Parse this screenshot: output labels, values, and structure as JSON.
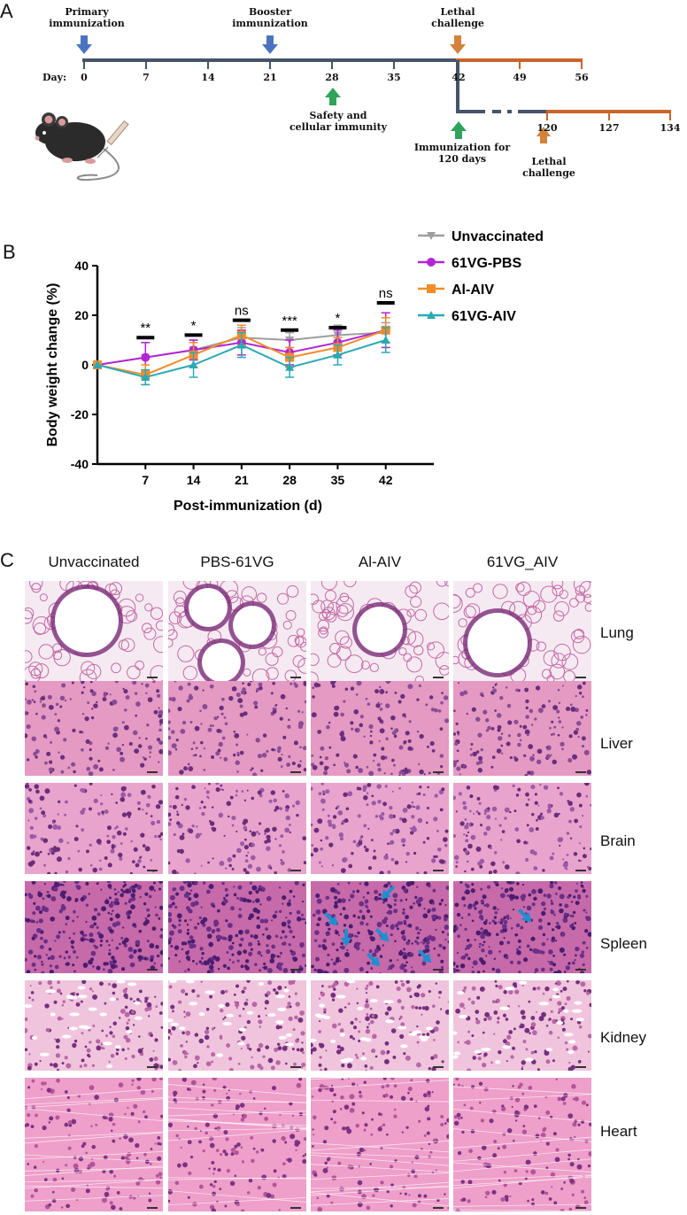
{
  "panel_a": {
    "letter": "A",
    "day_label": "Day:",
    "ticks_main": [
      "0",
      "7",
      "14",
      "21",
      "28",
      "35",
      "42",
      "49",
      "56"
    ],
    "ticks_branch": [
      "120",
      "127",
      "134"
    ],
    "events": {
      "primary": [
        "Primary",
        "immunization"
      ],
      "booster": [
        "Booster",
        "immunization"
      ],
      "lethal_top": [
        "Lethal",
        "challenge"
      ],
      "safety": [
        "Safety and",
        "cellular immunity"
      ],
      "imm120": [
        "Immunization for",
        "120 days"
      ],
      "lethal_bottom": [
        "Lethal",
        "challenge"
      ]
    },
    "colors": {
      "timeline": "#46546a",
      "challenge": "#c9642a",
      "blue_arrow": "#4a74c0",
      "green_arrow": "#2fa35a",
      "orange_arrow": "#d4823c"
    }
  },
  "panel_b": {
    "letter": "B",
    "chart_data": {
      "type": "line",
      "xlabel": "Post-immunization (d)",
      "ylabel": "Body weight change (%)",
      "x": [
        0,
        7,
        14,
        21,
        28,
        35,
        42
      ],
      "xticks": [
        "7",
        "14",
        "21",
        "28",
        "35",
        "42"
      ],
      "yticks": [
        "40",
        "20",
        "0",
        "-20",
        "-40"
      ],
      "ylim": [
        -40,
        40
      ],
      "series": [
        {
          "name": "Unvaccinated",
          "color": "#9e9e9e",
          "marker": "triangle-down",
          "values": [
            0,
            3,
            6,
            11,
            10,
            12,
            13
          ],
          "err": [
            0,
            6,
            4,
            4,
            3,
            4,
            4
          ]
        },
        {
          "name": "61VG-PBS",
          "color": "#b225d6",
          "marker": "circle",
          "values": [
            0,
            3,
            6,
            9,
            5,
            9,
            14
          ],
          "err": [
            0,
            6,
            4,
            5,
            5,
            5,
            7
          ]
        },
        {
          "name": "Al-AIV",
          "color": "#f28c28",
          "marker": "square",
          "values": [
            0,
            -4,
            4,
            12,
            3,
            7,
            14
          ],
          "err": [
            0,
            4,
            5,
            4,
            4,
            4,
            5
          ]
        },
        {
          "name": "61VG-AIV",
          "color": "#2aa9b5",
          "marker": "triangle-up",
          "values": [
            0,
            -5,
            0,
            8,
            -1,
            4,
            10
          ],
          "err": [
            0,
            3,
            5,
            5,
            4,
            4,
            5
          ]
        }
      ],
      "significance": [
        {
          "x": 7,
          "label": "**"
        },
        {
          "x": 14,
          "label": "*"
        },
        {
          "x": 21,
          "label": "ns"
        },
        {
          "x": 28,
          "label": "***"
        },
        {
          "x": 35,
          "label": "*"
        },
        {
          "x": 42,
          "label": "ns"
        }
      ],
      "legend_position": "top-right"
    }
  },
  "panel_c": {
    "letter": "C",
    "columns": [
      "Unvaccinated",
      "PBS-61VG",
      "Al-AIV",
      "61VG_AIV"
    ],
    "rows": [
      "Lung",
      "Liver",
      "Brain",
      "Spleen",
      "Kidney",
      "Heart"
    ],
    "arrow_color": "#1f8fcf"
  }
}
